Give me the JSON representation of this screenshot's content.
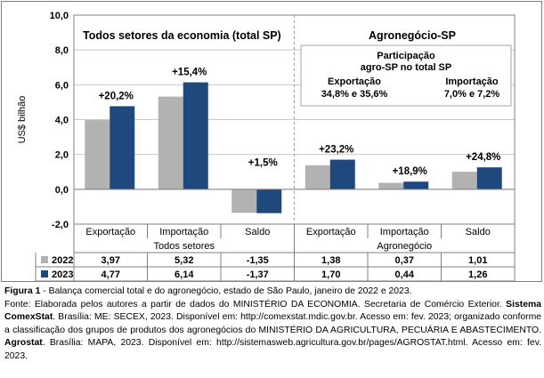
{
  "chart_data": {
    "type": "bar",
    "ylabel": "US$ bilhão",
    "ylim": [
      -2.0,
      10.0
    ],
    "yticks": [
      "10,0",
      "8,0",
      "6,0",
      "4,0",
      "2,0",
      "0,0",
      "-2,0"
    ],
    "categories": [
      "Exportação",
      "Importação",
      "Saldo",
      "Exportação",
      "Importação",
      "Saldo"
    ],
    "group_labels": [
      "Todos setores",
      "Agronegócio"
    ],
    "series": [
      {
        "name": "2022",
        "color": "#b2b2b2",
        "values": [
          3.97,
          5.32,
          -1.35,
          1.38,
          0.37,
          1.01
        ]
      },
      {
        "name": "2023",
        "color": "#1f497d",
        "values": [
          4.77,
          6.14,
          -1.37,
          1.7,
          0.44,
          1.26
        ]
      }
    ],
    "table_values": {
      "2022": [
        "3,97",
        "5,32",
        "-1,35",
        "1,38",
        "0,37",
        "1,01"
      ],
      "2023": [
        "4,77",
        "6,14",
        "-1,37",
        "1,70",
        "0,44",
        "1,26"
      ]
    },
    "change_labels": [
      "+20,2%",
      "+15,4%",
      "+1,5%",
      "+23,2%",
      "+18,9%",
      "+24,8%"
    ],
    "panel_titles": {
      "left": "Todos setores da economia (total SP)",
      "right": "Agronegócio-SP"
    },
    "participation_box": {
      "title_line1": "Participação",
      "title_line2": "agro-SP no total SP",
      "export_label": "Exportação",
      "export_value": "34,8% e 35,6%",
      "import_label": "Importação",
      "import_value": "7,0% e 7,2%"
    }
  },
  "caption": {
    "figure_label": "Figura 1",
    "title": " - Balança comercial total e do agronegócio, estado de São Paulo, janeiro de 2022 e 2023.",
    "line2_pre": "Fonte: Elaborada pelos autores a partir de dados do MINISTÉRIO DA ECONOMIA. Secretaria de Comércio Exterior. ",
    "line2_bold": "Sistema ComexStat",
    "line2_post": ". Brasília: ME: SECEX, 2023. Disponível em: http://comexstat.mdic.gov.br. Acesso em: fev. 2023; organizado conforme a classificação dos grupos de produtos dos agronegócios do MINISTÉRIO DA AGRICULTURA, PECUÁRIA E ABASTECIMENTO. ",
    "line4_bold": "Agrostat",
    "line4_post": ". Brasília: MAPA, 2023. Disponível em: http://sistemasweb.agricultura.gov.br/pages/AGROSTAT.html. Acesso em: fev. 2023."
  },
  "colors": {
    "series_2022": "#b2b2b2",
    "series_2023": "#1f497d",
    "grid": "#c8c8c8",
    "axis": "#808080"
  }
}
